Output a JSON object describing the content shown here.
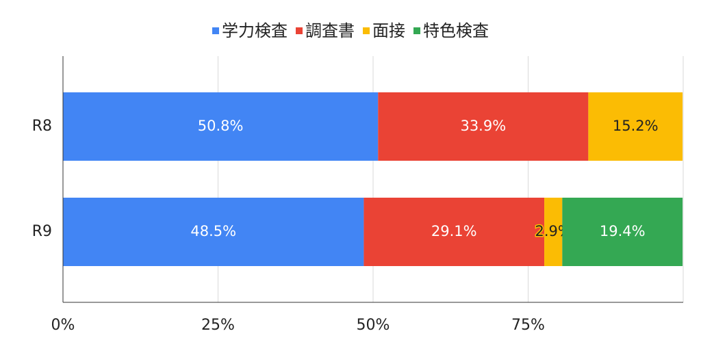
{
  "chart_data": {
    "type": "stacked-barh",
    "categories": [
      "R8",
      "R9"
    ],
    "series": [
      {
        "name": "学力検査",
        "color": "#4285f4",
        "label_color": "#ffffff",
        "values": [
          50.8,
          48.5
        ],
        "value_labels": [
          "50.8%",
          "48.5%"
        ]
      },
      {
        "name": "調査書",
        "color": "#ea4335",
        "label_color": "#ffffff",
        "values": [
          33.9,
          29.1
        ],
        "value_labels": [
          "33.9%",
          "29.1%"
        ]
      },
      {
        "name": "面接",
        "color": "#fbbc04",
        "label_color": "#222222",
        "values": [
          15.2,
          2.9
        ],
        "value_labels": [
          "15.2%",
          "2.9%"
        ]
      },
      {
        "name": "特色検査",
        "color": "#34a853",
        "label_color": "#ffffff",
        "values": [
          null,
          19.4
        ],
        "value_labels": [
          null,
          "19.4%"
        ]
      }
    ],
    "xlim": [
      0,
      100
    ],
    "xticks": [
      {
        "value": 0,
        "label": "0%"
      },
      {
        "value": 25,
        "label": "25%"
      },
      {
        "value": 50,
        "label": "50%"
      },
      {
        "value": 75,
        "label": "75%"
      }
    ],
    "grid": true,
    "legend": "top"
  }
}
